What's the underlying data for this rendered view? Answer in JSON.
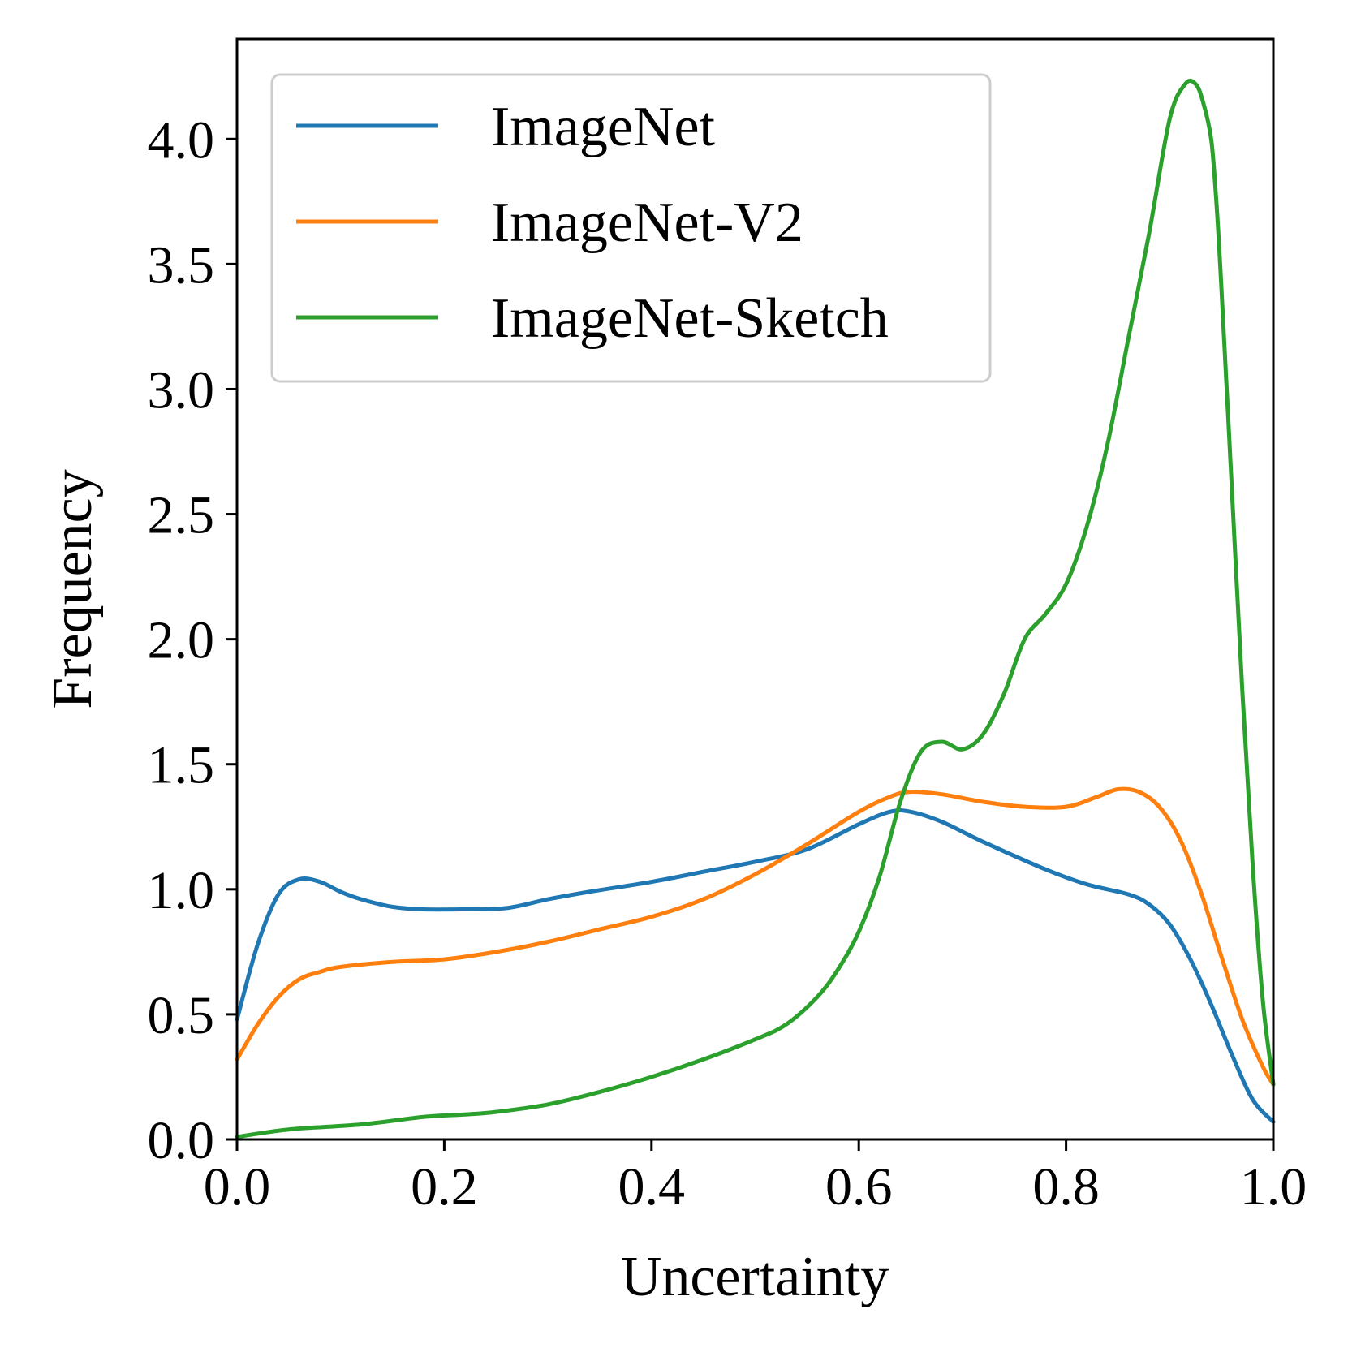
{
  "chart_data": {
    "type": "line",
    "title": "",
    "xlabel": "Uncertainty",
    "ylabel": "Frequency",
    "xlim": [
      0.0,
      1.0
    ],
    "ylim": [
      0.0,
      4.4
    ],
    "xticks": [
      "0.0",
      "0.2",
      "0.4",
      "0.6",
      "0.8",
      "1.0"
    ],
    "yticks": [
      "0.0",
      "0.5",
      "1.0",
      "1.5",
      "2.0",
      "2.5",
      "3.0",
      "3.5",
      "4.0"
    ],
    "grid": false,
    "legend_position": "top-left",
    "series": [
      {
        "name": "ImageNet",
        "color": "#1f77b4",
        "x": [
          0.0,
          0.02,
          0.04,
          0.06,
          0.08,
          0.1,
          0.12,
          0.15,
          0.18,
          0.22,
          0.26,
          0.3,
          0.34,
          0.4,
          0.45,
          0.5,
          0.55,
          0.6,
          0.63,
          0.65,
          0.68,
          0.72,
          0.78,
          0.82,
          0.86,
          0.88,
          0.9,
          0.92,
          0.94,
          0.96,
          0.98,
          1.0
        ],
        "y": [
          0.48,
          0.78,
          0.98,
          1.04,
          1.03,
          0.99,
          0.96,
          0.93,
          0.92,
          0.92,
          0.925,
          0.96,
          0.99,
          1.03,
          1.07,
          1.11,
          1.16,
          1.26,
          1.31,
          1.31,
          1.27,
          1.19,
          1.08,
          1.02,
          0.98,
          0.94,
          0.86,
          0.72,
          0.54,
          0.34,
          0.16,
          0.07
        ]
      },
      {
        "name": "ImageNet-V2",
        "color": "#ff7f0e",
        "x": [
          0.0,
          0.02,
          0.04,
          0.06,
          0.08,
          0.1,
          0.15,
          0.2,
          0.25,
          0.3,
          0.35,
          0.4,
          0.45,
          0.5,
          0.55,
          0.6,
          0.63,
          0.65,
          0.68,
          0.72,
          0.76,
          0.8,
          0.83,
          0.85,
          0.87,
          0.89,
          0.91,
          0.93,
          0.95,
          0.97,
          0.99,
          1.0
        ],
        "y": [
          0.32,
          0.46,
          0.57,
          0.64,
          0.67,
          0.69,
          0.71,
          0.72,
          0.75,
          0.79,
          0.84,
          0.89,
          0.96,
          1.06,
          1.18,
          1.31,
          1.37,
          1.39,
          1.38,
          1.35,
          1.33,
          1.33,
          1.37,
          1.4,
          1.39,
          1.33,
          1.2,
          0.99,
          0.73,
          0.48,
          0.29,
          0.22
        ]
      },
      {
        "name": "ImageNet-Sketch",
        "color": "#2ca02c",
        "x": [
          0.0,
          0.05,
          0.12,
          0.18,
          0.22,
          0.25,
          0.3,
          0.35,
          0.4,
          0.45,
          0.5,
          0.53,
          0.56,
          0.58,
          0.6,
          0.62,
          0.64,
          0.66,
          0.68,
          0.7,
          0.72,
          0.74,
          0.76,
          0.78,
          0.8,
          0.82,
          0.84,
          0.86,
          0.88,
          0.9,
          0.915,
          0.925,
          0.932,
          0.94,
          0.945,
          0.95,
          0.96,
          0.97,
          0.98,
          0.99,
          1.0
        ],
        "y": [
          0.01,
          0.04,
          0.06,
          0.09,
          0.1,
          0.11,
          0.14,
          0.19,
          0.25,
          0.32,
          0.4,
          0.46,
          0.57,
          0.68,
          0.83,
          1.05,
          1.35,
          1.55,
          1.59,
          1.56,
          1.62,
          1.78,
          2.0,
          2.1,
          2.22,
          2.45,
          2.78,
          3.2,
          3.62,
          4.08,
          4.22,
          4.22,
          4.15,
          4.0,
          3.75,
          3.4,
          2.6,
          1.8,
          1.1,
          0.55,
          0.22
        ]
      }
    ]
  }
}
